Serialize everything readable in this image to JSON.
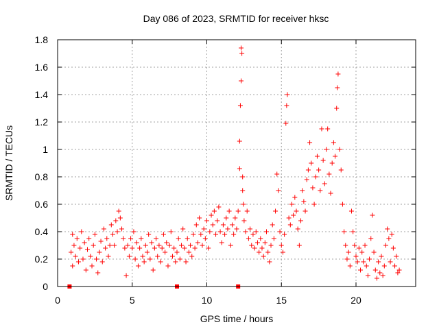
{
  "chart_data": {
    "type": "scatter",
    "title": "Day 086 of 2023, SRMTID for receiver hksc",
    "xlabel": "GPS time / hours",
    "ylabel": "SRMTID / TECUs",
    "xlim": [
      0,
      24
    ],
    "ylim": [
      0,
      1.8
    ],
    "xticks": [
      0,
      5,
      10,
      15,
      20
    ],
    "xtick_labels": [
      "0",
      "5",
      "10",
      "15",
      "20"
    ],
    "yticks": [
      0,
      0.2,
      0.4,
      0.6,
      0.8,
      1,
      1.2,
      1.4,
      1.6,
      1.8
    ],
    "ytick_labels": [
      "0",
      "0.2",
      "0.4",
      "0.6",
      "0.8",
      "1",
      "1.2",
      "1.4",
      "1.6",
      "1.8"
    ],
    "grid": true,
    "marker": "+",
    "color": "#ff0000",
    "zero_markers_x": [
      0.8,
      8.0,
      12.1
    ],
    "series": [
      {
        "name": "SRMTID",
        "points": [
          [
            0.9,
            0.25
          ],
          [
            1.0,
            0.38
          ],
          [
            1.0,
            0.15
          ],
          [
            1.1,
            0.3
          ],
          [
            1.2,
            0.22
          ],
          [
            1.3,
            0.35
          ],
          [
            1.4,
            0.18
          ],
          [
            1.5,
            0.28
          ],
          [
            1.6,
            0.4
          ],
          [
            1.7,
            0.2
          ],
          [
            1.8,
            0.32
          ],
          [
            1.9,
            0.12
          ],
          [
            2.0,
            0.27
          ],
          [
            2.1,
            0.35
          ],
          [
            2.2,
            0.22
          ],
          [
            2.3,
            0.15
          ],
          [
            2.4,
            0.3
          ],
          [
            2.5,
            0.38
          ],
          [
            2.6,
            0.2
          ],
          [
            2.7,
            0.1
          ],
          [
            2.8,
            0.25
          ],
          [
            2.9,
            0.33
          ],
          [
            3.0,
            0.18
          ],
          [
            3.1,
            0.42
          ],
          [
            3.2,
            0.28
          ],
          [
            3.3,
            0.35
          ],
          [
            3.4,
            0.22
          ],
          [
            3.5,
            0.3
          ],
          [
            3.6,
            0.45
          ],
          [
            3.7,
            0.38
          ],
          [
            3.8,
            0.3
          ],
          [
            3.9,
            0.48
          ],
          [
            4.0,
            0.4
          ],
          [
            4.1,
            0.55
          ],
          [
            4.2,
            0.5
          ],
          [
            4.3,
            0.42
          ],
          [
            4.4,
            0.35
          ],
          [
            4.5,
            0.28
          ],
          [
            4.6,
            0.08
          ],
          [
            4.7,
            0.3
          ],
          [
            4.8,
            0.22
          ],
          [
            4.9,
            0.35
          ],
          [
            5.0,
            0.28
          ],
          [
            5.1,
            0.4
          ],
          [
            5.2,
            0.2
          ],
          [
            5.3,
            0.32
          ],
          [
            5.4,
            0.15
          ],
          [
            5.5,
            0.28
          ],
          [
            5.6,
            0.35
          ],
          [
            5.7,
            0.22
          ],
          [
            5.8,
            0.18
          ],
          [
            5.9,
            0.3
          ],
          [
            6.0,
            0.25
          ],
          [
            6.1,
            0.38
          ],
          [
            6.2,
            0.2
          ],
          [
            6.3,
            0.32
          ],
          [
            6.4,
            0.12
          ],
          [
            6.5,
            0.28
          ],
          [
            6.6,
            0.35
          ],
          [
            6.7,
            0.22
          ],
          [
            6.8,
            0.3
          ],
          [
            6.9,
            0.18
          ],
          [
            7.0,
            0.28
          ],
          [
            7.1,
            0.38
          ],
          [
            7.2,
            0.25
          ],
          [
            7.3,
            0.32
          ],
          [
            7.4,
            0.15
          ],
          [
            7.5,
            0.3
          ],
          [
            7.6,
            0.4
          ],
          [
            7.7,
            0.22
          ],
          [
            7.8,
            0.28
          ],
          [
            7.9,
            0.18
          ],
          [
            8.0,
            0.25
          ],
          [
            8.1,
            0.35
          ],
          [
            8.2,
            0.2
          ],
          [
            8.3,
            0.3
          ],
          [
            8.4,
            0.42
          ],
          [
            8.5,
            0.28
          ],
          [
            8.6,
            0.18
          ],
          [
            8.7,
            0.35
          ],
          [
            8.8,
            0.25
          ],
          [
            8.9,
            0.3
          ],
          [
            9.0,
            0.22
          ],
          [
            9.1,
            0.38
          ],
          [
            9.2,
            0.28
          ],
          [
            9.3,
            0.45
          ],
          [
            9.4,
            0.32
          ],
          [
            9.5,
            0.5
          ],
          [
            9.6,
            0.38
          ],
          [
            9.7,
            0.3
          ],
          [
            9.8,
            0.42
          ],
          [
            9.9,
            0.35
          ],
          [
            10.0,
            0.48
          ],
          [
            10.1,
            0.28
          ],
          [
            10.2,
            0.4
          ],
          [
            10.3,
            0.52
          ],
          [
            10.4,
            0.45
          ],
          [
            10.5,
            0.55
          ],
          [
            10.6,
            0.38
          ],
          [
            10.7,
            0.48
          ],
          [
            10.8,
            0.58
          ],
          [
            10.9,
            0.4
          ],
          [
            11.0,
            0.32
          ],
          [
            11.1,
            0.45
          ],
          [
            11.2,
            0.38
          ],
          [
            11.3,
            0.5
          ],
          [
            11.4,
            0.42
          ],
          [
            11.5,
            0.55
          ],
          [
            11.6,
            0.3
          ],
          [
            11.7,
            0.45
          ],
          [
            11.8,
            0.38
          ],
          [
            11.9,
            0.5
          ],
          [
            12.0,
            0.42
          ],
          [
            12.1,
            0.55
          ],
          [
            12.2,
            0.86
          ],
          [
            12.2,
            1.06
          ],
          [
            12.25,
            1.32
          ],
          [
            12.3,
            1.5
          ],
          [
            12.3,
            1.74
          ],
          [
            12.35,
            1.7
          ],
          [
            12.4,
            0.8
          ],
          [
            12.4,
            0.7
          ],
          [
            12.45,
            0.6
          ],
          [
            12.5,
            0.48
          ],
          [
            12.6,
            0.4
          ],
          [
            12.7,
            0.55
          ],
          [
            12.8,
            0.35
          ],
          [
            12.9,
            0.42
          ],
          [
            13.0,
            0.3
          ],
          [
            13.1,
            0.38
          ],
          [
            13.2,
            0.28
          ],
          [
            13.3,
            0.4
          ],
          [
            13.4,
            0.32
          ],
          [
            13.5,
            0.25
          ],
          [
            13.6,
            0.35
          ],
          [
            13.7,
            0.28
          ],
          [
            13.8,
            0.22
          ],
          [
            13.9,
            0.32
          ],
          [
            14.0,
            0.4
          ],
          [
            14.1,
            0.25
          ],
          [
            14.2,
            0.18
          ],
          [
            14.3,
            0.3
          ],
          [
            14.4,
            0.45
          ],
          [
            14.5,
            0.35
          ],
          [
            14.6,
            0.55
          ],
          [
            14.7,
            0.82
          ],
          [
            14.8,
            0.7
          ],
          [
            14.9,
            0.4
          ],
          [
            15.0,
            0.3
          ],
          [
            15.1,
            0.25
          ],
          [
            15.2,
            0.38
          ],
          [
            15.3,
            1.19
          ],
          [
            15.35,
            1.32
          ],
          [
            15.4,
            1.4
          ],
          [
            15.5,
            0.5
          ],
          [
            15.6,
            0.45
          ],
          [
            15.7,
            0.6
          ],
          [
            15.8,
            0.52
          ],
          [
            15.9,
            0.65
          ],
          [
            16.0,
            0.55
          ],
          [
            16.1,
            0.42
          ],
          [
            16.2,
            0.3
          ],
          [
            16.3,
            0.48
          ],
          [
            16.4,
            0.7
          ],
          [
            16.5,
            0.62
          ],
          [
            16.6,
            0.55
          ],
          [
            16.7,
            0.78
          ],
          [
            16.8,
            0.85
          ],
          [
            16.9,
            1.05
          ],
          [
            17.0,
            0.9
          ],
          [
            17.1,
            0.72
          ],
          [
            17.2,
            0.6
          ],
          [
            17.3,
            0.8
          ],
          [
            17.4,
            0.95
          ],
          [
            17.5,
            0.85
          ],
          [
            17.6,
            0.7
          ],
          [
            17.7,
            1.15
          ],
          [
            17.8,
            0.92
          ],
          [
            17.9,
            0.75
          ],
          [
            18.0,
            1.0
          ],
          [
            18.1,
            1.15
          ],
          [
            18.2,
            0.82
          ],
          [
            18.3,
            0.68
          ],
          [
            18.4,
            0.9
          ],
          [
            18.5,
            1.05
          ],
          [
            18.6,
            0.95
          ],
          [
            18.7,
            1.3
          ],
          [
            18.75,
            1.45
          ],
          [
            18.8,
            1.55
          ],
          [
            18.9,
            1.0
          ],
          [
            19.0,
            0.85
          ],
          [
            19.1,
            0.6
          ],
          [
            19.2,
            0.4
          ],
          [
            19.3,
            0.3
          ],
          [
            19.4,
            0.2
          ],
          [
            19.5,
            0.25
          ],
          [
            19.6,
            0.15
          ],
          [
            19.7,
            0.55
          ],
          [
            19.8,
            0.4
          ],
          [
            19.9,
            0.3
          ],
          [
            20.0,
            0.22
          ],
          [
            20.1,
            0.18
          ],
          [
            20.2,
            0.28
          ],
          [
            20.3,
            0.12
          ],
          [
            20.4,
            0.25
          ],
          [
            20.5,
            0.18
          ],
          [
            20.6,
            0.3
          ],
          [
            20.7,
            0.15
          ],
          [
            20.8,
            0.08
          ],
          [
            20.9,
            0.2
          ],
          [
            21.0,
            0.35
          ],
          [
            21.1,
            0.52
          ],
          [
            21.2,
            0.25
          ],
          [
            21.3,
            0.12
          ],
          [
            21.4,
            0.06
          ],
          [
            21.5,
            0.18
          ],
          [
            21.6,
            0.1
          ],
          [
            21.7,
            0.22
          ],
          [
            21.8,
            0.08
          ],
          [
            21.9,
            0.15
          ],
          [
            22.0,
            0.3
          ],
          [
            22.1,
            0.42
          ],
          [
            22.2,
            0.35
          ],
          [
            22.3,
            0.18
          ],
          [
            22.4,
            0.38
          ],
          [
            22.5,
            0.28
          ],
          [
            22.6,
            0.15
          ],
          [
            22.7,
            0.22
          ],
          [
            22.8,
            0.1
          ],
          [
            22.9,
            0.12
          ]
        ]
      }
    ]
  }
}
